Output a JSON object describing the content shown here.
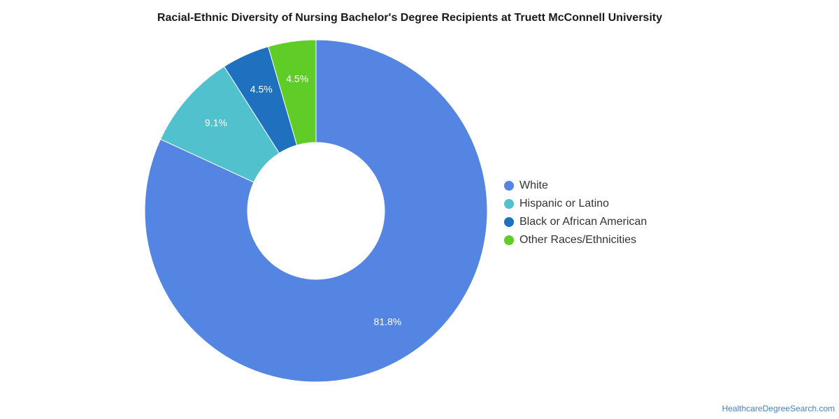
{
  "title": "Racial-Ethnic Diversity of Nursing Bachelor's Degree Recipients at Truett McConnell University",
  "source": "HealthcareDegreeSearch.com",
  "chart_data": {
    "type": "pie",
    "variant": "donut",
    "title": "Racial-Ethnic Diversity of Nursing Bachelor's Degree Recipients at Truett McConnell University",
    "legend": "right",
    "categories": [
      "White",
      "Hispanic or Latino",
      "Black or African American",
      "Other Races/Ethnicities"
    ],
    "values": [
      81.8,
      9.1,
      4.5,
      4.5
    ],
    "labels": [
      "81.8%",
      "9.1%",
      "4.5%",
      "4.5%"
    ],
    "colors": [
      "#5485e2",
      "#51c1cd",
      "#1f71bf",
      "#60cc28"
    ]
  }
}
